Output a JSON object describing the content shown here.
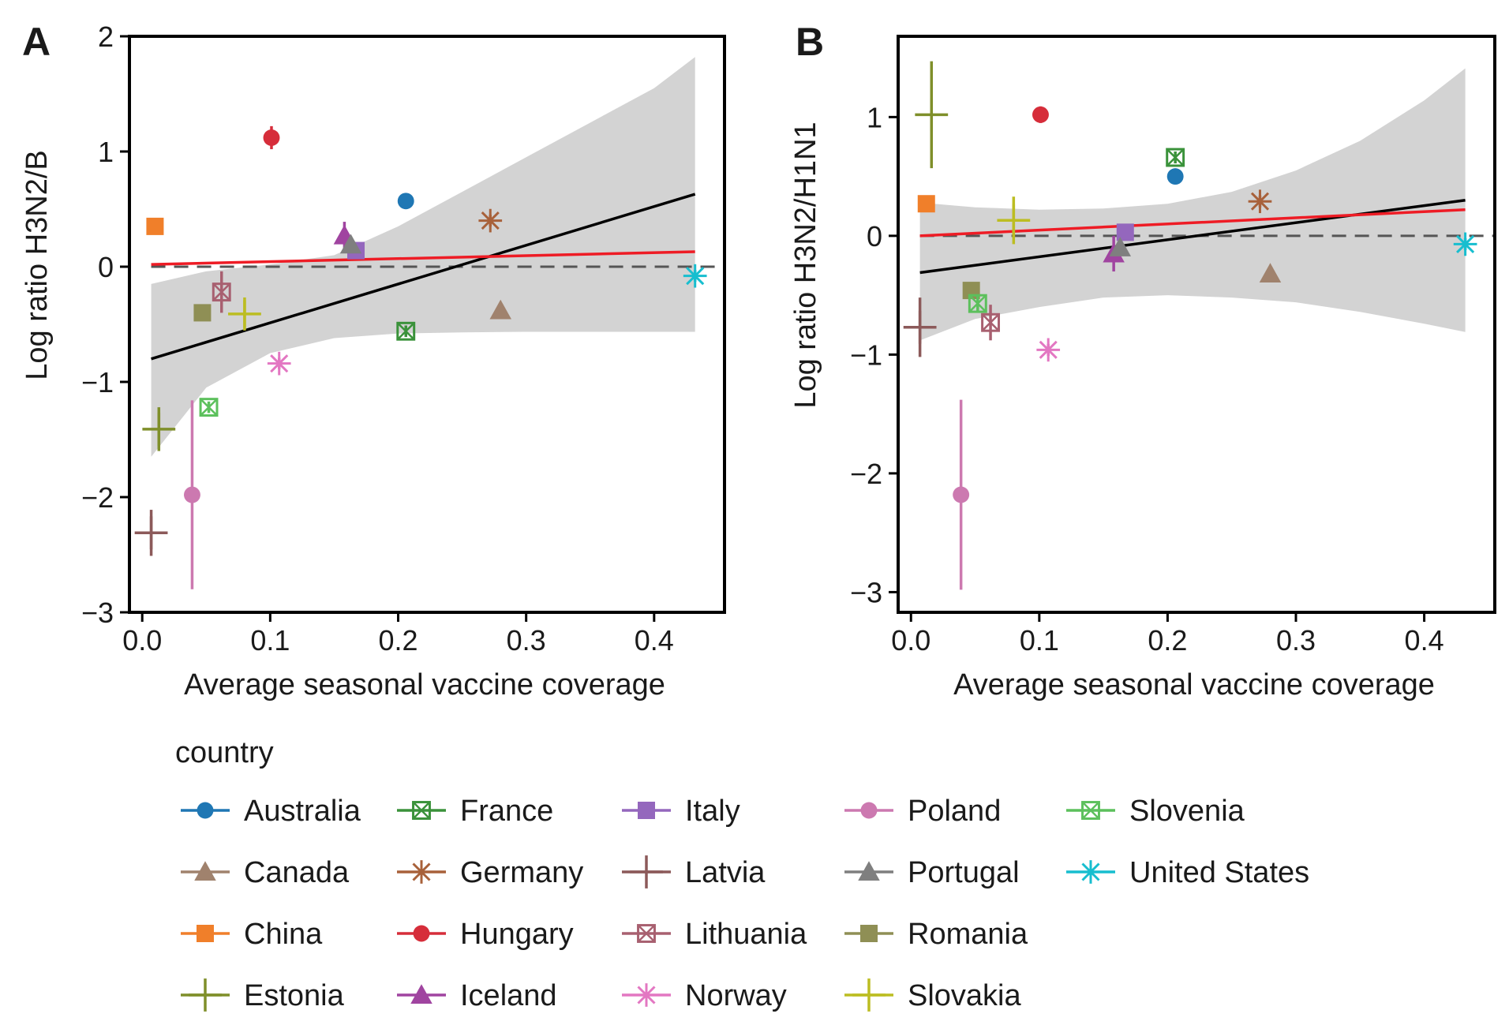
{
  "legend": {
    "title": "country",
    "entries": [
      {
        "name": "Australia",
        "color": "#1f77b4",
        "marker": "circle"
      },
      {
        "name": "Canada",
        "color": "#a0826d",
        "marker": "triangle"
      },
      {
        "name": "China",
        "color": "#f07f2a",
        "marker": "square"
      },
      {
        "name": "Estonia",
        "color": "#7f8f2a",
        "marker": "plus"
      },
      {
        "name": "France",
        "color": "#3a923a",
        "marker": "square-x"
      },
      {
        "name": "Germany",
        "color": "#a8613a",
        "marker": "asterisk"
      },
      {
        "name": "Hungary",
        "color": "#d62d3a",
        "marker": "circle"
      },
      {
        "name": "Iceland",
        "color": "#a044a0",
        "marker": "triangle"
      },
      {
        "name": "Italy",
        "color": "#9467bd",
        "marker": "square"
      },
      {
        "name": "Latvia",
        "color": "#8c5a5a",
        "marker": "plus"
      },
      {
        "name": "Lithuania",
        "color": "#a86070",
        "marker": "square-x"
      },
      {
        "name": "Norway",
        "color": "#e377c2",
        "marker": "asterisk"
      },
      {
        "name": "Poland",
        "color": "#cc79b0",
        "marker": "circle"
      },
      {
        "name": "Portugal",
        "color": "#7f7f7f",
        "marker": "triangle"
      },
      {
        "name": "Romania",
        "color": "#8f8f55",
        "marker": "square"
      },
      {
        "name": "Slovakia",
        "color": "#bcbd22",
        "marker": "plus"
      },
      {
        "name": "Slovenia",
        "color": "#5cc05c",
        "marker": "square-x"
      },
      {
        "name": "United States",
        "color": "#17becf",
        "marker": "asterisk"
      }
    ]
  },
  "chart_data": [
    {
      "panel": "A",
      "type": "scatter",
      "xlabel": "Average seasonal vaccine coverage",
      "ylabel": "Log ratio H3N2/B",
      "xlim": [
        -0.01,
        0.455
      ],
      "ylim": [
        -3,
        2
      ],
      "xticks": [
        "0.0",
        "0.1",
        "0.2",
        "0.3",
        "0.4"
      ],
      "yticks": [
        "−3",
        "−2",
        "−1",
        "0",
        "1",
        "2"
      ],
      "points": [
        {
          "country": "Australia",
          "x": 0.206,
          "y": 0.57,
          "err": 0.05
        },
        {
          "country": "Canada",
          "x": 0.28,
          "y": -0.38,
          "err": 0
        },
        {
          "country": "China",
          "x": 0.01,
          "y": 0.35,
          "err": 0
        },
        {
          "country": "Estonia",
          "x": 0.013,
          "y": -1.41,
          "err": 0.19
        },
        {
          "country": "France",
          "x": 0.206,
          "y": -0.56,
          "err": 0.05
        },
        {
          "country": "Germany",
          "x": 0.272,
          "y": 0.4,
          "err": 0.05
        },
        {
          "country": "Hungary",
          "x": 0.101,
          "y": 1.12,
          "err": 0.1
        },
        {
          "country": "Iceland",
          "x": 0.158,
          "y": 0.27,
          "err": 0.12
        },
        {
          "country": "Italy",
          "x": 0.167,
          "y": 0.14,
          "err": 0.05
        },
        {
          "country": "Latvia",
          "x": 0.007,
          "y": -2.31,
          "err": 0.2
        },
        {
          "country": "Lithuania",
          "x": 0.062,
          "y": -0.22,
          "err": 0.18
        },
        {
          "country": "Norway",
          "x": 0.107,
          "y": -0.84,
          "err": 0.05
        },
        {
          "country": "Poland",
          "x": 0.039,
          "y": -1.98,
          "err": 0.82
        },
        {
          "country": "Portugal",
          "x": 0.163,
          "y": 0.19,
          "err": 0.05
        },
        {
          "country": "Romania",
          "x": 0.047,
          "y": -0.4,
          "err": 0
        },
        {
          "country": "Slovakia",
          "x": 0.08,
          "y": -0.41,
          "err": 0.12
        },
        {
          "country": "Slovenia",
          "x": 0.052,
          "y": -1.22,
          "err": 0.05
        },
        {
          "country": "United States",
          "x": 0.432,
          "y": -0.08,
          "err": 0.05
        }
      ],
      "fit_black": {
        "x": [
          0.007,
          0.432
        ],
        "y": [
          -0.8,
          0.63
        ]
      },
      "fit_red": {
        "x": [
          0.007,
          0.432
        ],
        "y": [
          0.02,
          0.13
        ]
      },
      "ci_band": {
        "x": [
          0.007,
          0.05,
          0.1,
          0.15,
          0.2,
          0.25,
          0.3,
          0.35,
          0.4,
          0.432
        ],
        "lower": [
          -1.65,
          -1.05,
          -0.75,
          -0.62,
          -0.58,
          -0.57,
          -0.565,
          -0.565,
          -0.565,
          -0.565
        ],
        "upper": [
          -0.15,
          -0.04,
          0.02,
          0.1,
          0.35,
          0.65,
          0.95,
          1.25,
          1.55,
          1.82
        ]
      },
      "reference_line": 0
    },
    {
      "panel": "B",
      "type": "scatter",
      "xlabel": "Average seasonal vaccine coverage",
      "ylabel": "Log ratio H3N2/H1N1",
      "xlim": [
        -0.01,
        0.455
      ],
      "ylim": [
        -3.17,
        1.68
      ],
      "xticks": [
        "0.0",
        "0.1",
        "0.2",
        "0.3",
        "0.4"
      ],
      "yticks": [
        "−3",
        "−2",
        "−1",
        "0",
        "1"
      ],
      "points": [
        {
          "country": "Australia",
          "x": 0.206,
          "y": 0.5,
          "err": 0.05
        },
        {
          "country": "Canada",
          "x": 0.28,
          "y": -0.32,
          "err": 0
        },
        {
          "country": "China",
          "x": 0.012,
          "y": 0.27,
          "err": 0
        },
        {
          "country": "Estonia",
          "x": 0.016,
          "y": 1.02,
          "err": 0.45
        },
        {
          "country": "France",
          "x": 0.206,
          "y": 0.66,
          "err": 0.05
        },
        {
          "country": "Germany",
          "x": 0.272,
          "y": 0.29,
          "err": 0.05
        },
        {
          "country": "Hungary",
          "x": 0.101,
          "y": 1.02,
          "err": 0.07
        },
        {
          "country": "Iceland",
          "x": 0.158,
          "y": -0.15,
          "err": 0.15
        },
        {
          "country": "Italy",
          "x": 0.167,
          "y": 0.03,
          "err": 0.05
        },
        {
          "country": "Latvia",
          "x": 0.007,
          "y": -0.77,
          "err": 0.25
        },
        {
          "country": "Lithuania",
          "x": 0.062,
          "y": -0.73,
          "err": 0.15
        },
        {
          "country": "Norway",
          "x": 0.107,
          "y": -0.96,
          "err": 0.05
        },
        {
          "country": "Poland",
          "x": 0.039,
          "y": -2.18,
          "err": 0.8
        },
        {
          "country": "Portugal",
          "x": 0.163,
          "y": -0.1,
          "err": 0.05
        },
        {
          "country": "Romania",
          "x": 0.047,
          "y": -0.46,
          "err": 0
        },
        {
          "country": "Slovakia",
          "x": 0.08,
          "y": 0.13,
          "err": 0.2
        },
        {
          "country": "Slovenia",
          "x": 0.052,
          "y": -0.57,
          "err": 0.07
        },
        {
          "country": "United States",
          "x": 0.432,
          "y": -0.07,
          "err": 0.05
        }
      ],
      "fit_black": {
        "x": [
          0.007,
          0.432
        ],
        "y": [
          -0.31,
          0.3
        ]
      },
      "fit_red": {
        "x": [
          0.007,
          0.432
        ],
        "y": [
          0.0,
          0.22
        ]
      },
      "ci_band": {
        "x": [
          0.007,
          0.05,
          0.1,
          0.15,
          0.2,
          0.25,
          0.3,
          0.35,
          0.4,
          0.432
        ],
        "lower": [
          -0.88,
          -0.7,
          -0.6,
          -0.52,
          -0.5,
          -0.52,
          -0.56,
          -0.64,
          -0.74,
          -0.81
        ],
        "upper": [
          0.28,
          0.24,
          0.22,
          0.23,
          0.27,
          0.37,
          0.55,
          0.8,
          1.14,
          1.41
        ]
      },
      "reference_line": 0
    }
  ]
}
